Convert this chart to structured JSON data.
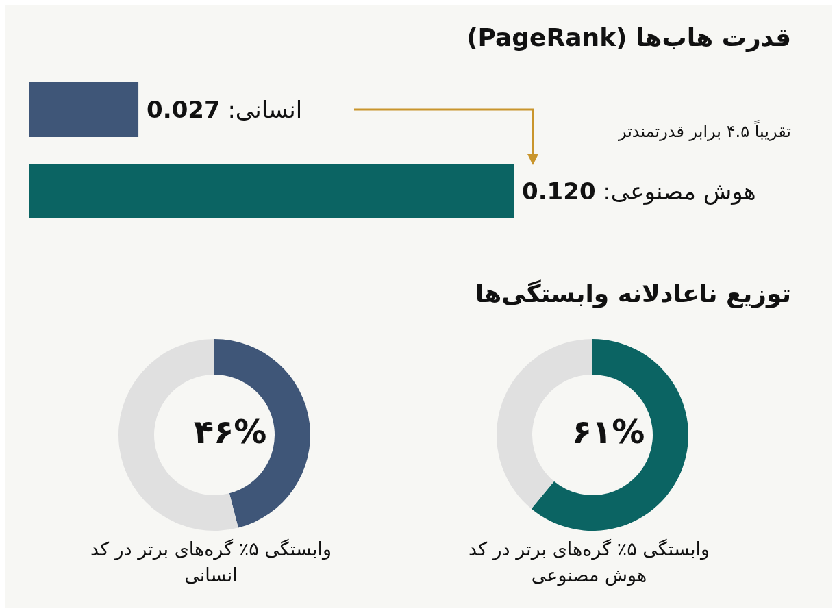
{
  "chart_data": [
    {
      "type": "bar",
      "orientation": "horizontal",
      "title": "قدرت هاب‌ها (PageRank)",
      "categories": [
        null,
        null
      ],
      "values": [
        0.027,
        0.12
      ],
      "colors": [
        "#3f5678",
        "#0b6463"
      ],
      "value_labels": [
        "انسانی: 0.027",
        "هوش مصنوعی: 0.120"
      ],
      "annotations": [
        "تقریباً ۴.۵ برابر قدرتمندتر"
      ]
    },
    {
      "type": "donut",
      "title": "توزیع ناعادلانه وابستگی‌ها",
      "categories": [
        null,
        null
      ],
      "values": [
        61,
        39
      ],
      "colors": [
        "#0b6463",
        "#e0e0e0"
      ],
      "value_labels": [
        "۶۱%",
        null
      ],
      "annotations": [
        "وابستگی ۵٪ گره‌های برتر در کد هوش مصنوعی"
      ]
    },
    {
      "type": "donut",
      "categories": [
        null,
        null
      ],
      "values": [
        46,
        54
      ],
      "colors": [
        "#3f5678",
        "#e0e0e0"
      ],
      "value_labels": [
        "۴۶%",
        null
      ],
      "annotations": [
        "وابستگی ۵٪ گره‌های برتر در کد انسانی"
      ]
    }
  ]
}
